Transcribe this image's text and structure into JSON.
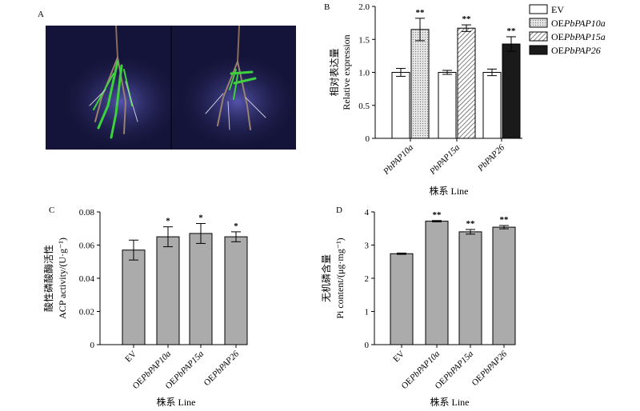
{
  "panels": {
    "a": "A",
    "b": "B",
    "c": "C",
    "d": "D"
  },
  "chart_data": [
    {
      "panel": "B",
      "type": "bar",
      "categories": [
        "PbPAP10a",
        "PbPAP15a",
        "PbPAP26"
      ],
      "series": [
        {
          "name": "EV",
          "values": [
            1.0,
            1.0,
            1.0
          ],
          "errors": [
            0.06,
            0.03,
            0.05
          ],
          "fill": "#ffffff",
          "pattern": "none"
        },
        {
          "name": "OEPbPAP10a",
          "values": [
            1.65,
            null,
            null
          ],
          "errors": [
            0.17,
            null,
            null
          ],
          "fill": "#d8d8d8",
          "pattern": "dots"
        },
        {
          "name": "OEPbPAP15a",
          "values": [
            null,
            1.67,
            null
          ],
          "errors": [
            null,
            0.05,
            null
          ],
          "fill": "#ffffff",
          "pattern": "hatch"
        },
        {
          "name": "OEPbPAP26",
          "values": [
            null,
            null,
            1.43
          ],
          "errors": [
            null,
            null,
            0.11
          ],
          "fill": "#1a1a1a",
          "pattern": "none"
        }
      ],
      "significance": [
        "**",
        "**",
        "**"
      ],
      "legend_prefix": "OE",
      "legend_italic": [
        "",
        "PbPAP10a",
        "PbPAP15a",
        "PbPAP26"
      ],
      "ylabel_cn": "相对表达量",
      "ylabel_en": "Relative expression",
      "xlabel": "株系 Line",
      "ylim": [
        0,
        2.0
      ],
      "yticks": [
        "0",
        "0.5",
        "1.0",
        "1.5",
        "2.0"
      ],
      "legend": "top-right"
    },
    {
      "panel": "C",
      "type": "bar",
      "categories": [
        "EV",
        "OEPbPAP10a",
        "OEPbPAP15a",
        "OEPbPAP26"
      ],
      "values": [
        0.057,
        0.065,
        0.067,
        0.065
      ],
      "errors": [
        0.006,
        0.006,
        0.006,
        0.003
      ],
      "significance": [
        "",
        "*",
        "*",
        "*"
      ],
      "ylabel_cn": "酸性磷酸酶活性",
      "ylabel_en": "ACP activity/(U·g⁻¹)",
      "xlabel": "株系 Line",
      "ylim": [
        0,
        0.08
      ],
      "yticks": [
        "0",
        "0.02",
        "0.04",
        "0.06",
        "0.08"
      ]
    },
    {
      "panel": "D",
      "type": "bar",
      "categories": [
        "EV",
        "OEPbPAP10a",
        "OEPbPAP15a",
        "OEPbPAP26"
      ],
      "values": [
        2.74,
        3.72,
        3.4,
        3.54
      ],
      "errors": [
        0.02,
        0.02,
        0.07,
        0.05
      ],
      "significance": [
        "",
        "**",
        "**",
        "**"
      ],
      "ylabel_cn": "无机磷含量",
      "ylabel_en": "Pi content/(μg·mg⁻¹)",
      "xlabel": "株系 Line",
      "ylim": [
        0,
        4
      ],
      "yticks": [
        "0",
        "1",
        "2",
        "3",
        "4"
      ]
    }
  ],
  "colors": {
    "bar_gray": "#ababab",
    "photo_bg": "#14143a",
    "root_green": "#3dd23d"
  }
}
